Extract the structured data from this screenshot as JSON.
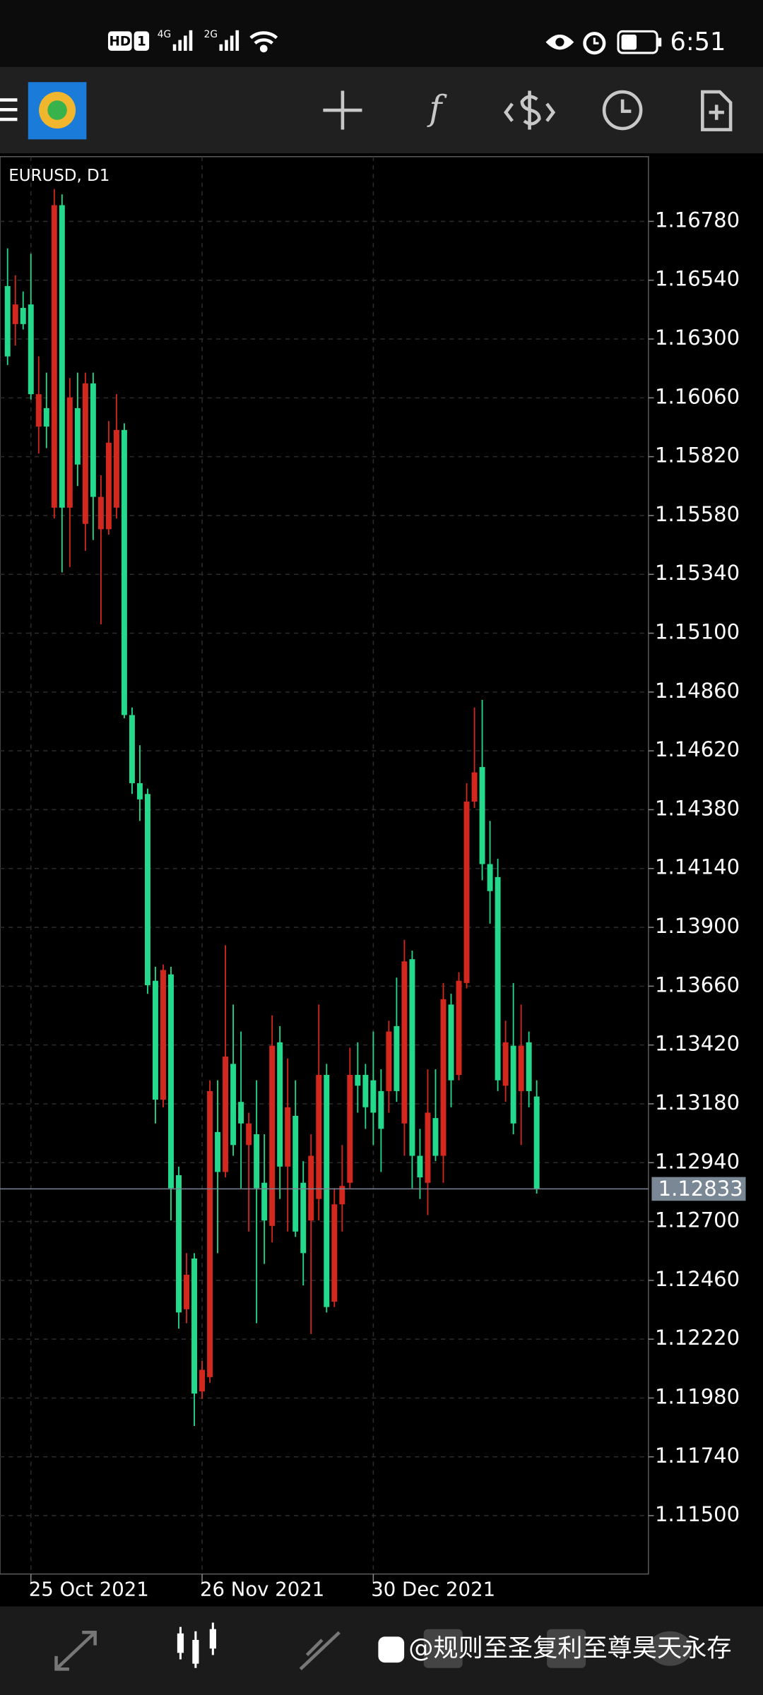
{
  "status_bar": {
    "network": [
      "HD",
      "1",
      "4G",
      "2G"
    ],
    "time": "6:51"
  },
  "chart_data": {
    "type": "candlestick",
    "title": "EURUSD, D1",
    "categories": [
      null,
      null,
      null,
      "25 Oct 2021",
      null,
      null,
      null,
      null,
      null,
      null,
      null,
      null,
      null,
      null,
      null,
      null,
      null,
      null,
      null,
      null,
      null,
      null,
      null,
      null,
      null,
      "26 Nov 2021",
      null,
      null,
      null,
      null,
      null,
      null,
      null,
      null,
      null,
      null,
      null,
      null,
      null,
      null,
      null,
      null,
      null,
      null,
      null,
      null,
      null,
      "30 Dec 2021",
      null,
      null,
      null,
      null,
      null,
      null,
      null,
      null,
      null,
      null,
      null,
      null,
      null,
      null,
      null,
      null,
      null,
      null,
      null,
      null,
      null
    ],
    "open": [
      1.16516,
      1.16361,
      1.16427,
      1.16441,
      1.15943,
      1.16018,
      1.15612,
      1.16846,
      1.15612,
      1.16018,
      1.15546,
      1.16119,
      1.15524,
      1.15524,
      1.15612,
      1.15929,
      1.14766,
      1.14488,
      1.14444,
      1.13682,
      1.13197,
      1.13708,
      1.12889,
      1.12342,
      1.12549,
      1.12007,
      1.12065,
      1.13065,
      1.12902,
      1.13343,
      1.13188,
      1.13012,
      1.13056,
      1.12858,
      1.12682,
      1.13431,
      1.12924,
      1.13131,
      1.12858,
      1.12704,
      1.12792,
      1.13298,
      1.12373,
      1.1277,
      1.12858,
      1.13298,
      1.13298,
      1.13276,
      1.13232,
      1.13232,
      1.13497,
      1.131,
      1.1377,
      1.12968,
      1.12858,
      1.13122,
      1.12968,
      1.13585,
      1.13298,
      1.13673,
      1.14413,
      1.14554,
      1.14158,
      1.14105,
      1.13254,
      1.13417,
      1.13232,
      1.13431,
      1.1321
    ],
    "high": [
      1.1667,
      1.1656,
      1.16494,
      1.16648,
      1.16229,
      1.16163,
      1.16912,
      1.1689,
      1.16141,
      1.16163,
      1.16163,
      1.16163,
      1.15744,
      1.15965,
      1.16075,
      1.15956,
      1.14797,
      1.14643,
      1.14466,
      1.13739,
      1.13748,
      1.13739,
      1.12924,
      1.12571,
      1.12571,
      1.12131,
      1.13276,
      1.13276,
      1.13827,
      1.13585,
      1.13475,
      1.13144,
      1.13276,
      1.13056,
      1.13541,
      1.13497,
      1.13365,
      1.13276,
      1.12946,
      1.13056,
      1.13585,
      1.13343,
      1.12836,
      1.13012,
      1.13409,
      1.13431,
      1.13343,
      1.13475,
      1.13321,
      1.13519,
      1.13695,
      1.13849,
      1.13805,
      1.13078,
      1.13321,
      1.13321,
      1.13673,
      1.13629,
      1.13717,
      1.14488,
      1.14797,
      1.14828,
      1.14334,
      1.1418,
      1.13519,
      1.13673,
      1.13585,
      1.13475,
      1.13276
    ],
    "low": [
      1.16194,
      1.16273,
      1.16339,
      1.16053,
      1.15833,
      1.15855,
      1.15568,
      1.15348,
      1.1537,
      1.157,
      1.15436,
      1.1548,
      1.15136,
      1.15502,
      1.15568,
      1.14753,
      1.14444,
      1.14334,
      1.13629,
      1.131,
      1.13166,
      1.12704,
      1.12263,
      1.12285,
      1.11866,
      1.11976,
      1.12042,
      1.12571,
      1.1288,
      1.12968,
      1.12836,
      1.12659,
      1.12285,
      1.12527,
      1.12615,
      1.12792,
      1.12659,
      1.12637,
      1.12439,
      1.12241,
      1.12704,
      1.12329,
      1.12351,
      1.12659,
      1.12836,
      1.13144,
      1.13078,
      1.13012,
      1.12902,
      1.13144,
      1.13188,
      1.12968,
      1.12836,
      1.12792,
      1.12726,
      1.12946,
      1.12858,
      1.13166,
      1.13276,
      1.13651,
      1.14387,
      1.14092,
      1.13915,
      1.13232,
      1.13188,
      1.13056,
      1.13012,
      1.13166,
      1.12814
    ],
    "close": [
      1.16229,
      1.16441,
      1.16361,
      1.16075,
      1.16075,
      1.15943,
      1.16846,
      1.15612,
      1.16062,
      1.15788,
      1.16119,
      1.15656,
      1.15656,
      1.15877,
      1.15929,
      1.14766,
      1.14488,
      1.14422,
      1.13664,
      1.13197,
      1.13726,
      1.12836,
      1.12329,
      1.12483,
      1.11998,
      1.12095,
      1.13232,
      1.12902,
      1.13373,
      1.13012,
      1.131,
      1.131,
      1.12836,
      1.12704,
      1.13417,
      1.12924,
      1.13166,
      1.12659,
      1.12571,
      1.12968,
      1.13298,
      1.12351,
      1.1277,
      1.12845,
      1.13298,
      1.13254,
      1.13166,
      1.13144,
      1.13078,
      1.13475,
      1.13232,
      1.13761,
      1.12968,
      1.1288,
      1.13144,
      1.12968,
      1.13607,
      1.13276,
      1.13682,
      1.14413,
      1.14532,
      1.14158,
      1.14048,
      1.13276,
      1.13431,
      1.131,
      1.13417,
      1.13232,
      1.12833
    ],
    "up_color": "#d2281d",
    "down_color": "#24d88c",
    "ylim": [
      1.11262,
      1.17044
    ],
    "yticks": [
      {
        "value": 1.1678,
        "label": "1.16780"
      },
      {
        "value": 1.1654,
        "label": "1.16540"
      },
      {
        "value": 1.163,
        "label": "1.16300"
      },
      {
        "value": 1.1606,
        "label": "1.16060"
      },
      {
        "value": 1.1582,
        "label": "1.15820"
      },
      {
        "value": 1.1558,
        "label": "1.15580"
      },
      {
        "value": 1.1534,
        "label": "1.15340"
      },
      {
        "value": 1.151,
        "label": "1.15100"
      },
      {
        "value": 1.1486,
        "label": "1.14860"
      },
      {
        "value": 1.1462,
        "label": "1.14620"
      },
      {
        "value": 1.1438,
        "label": "1.14380"
      },
      {
        "value": 1.1414,
        "label": "1.14140"
      },
      {
        "value": 1.139,
        "label": "1.13900"
      },
      {
        "value": 1.1366,
        "label": "1.13660"
      },
      {
        "value": 1.1342,
        "label": "1.13420"
      },
      {
        "value": 1.1318,
        "label": "1.13180"
      },
      {
        "value": 1.1294,
        "label": "1.12940"
      },
      {
        "value": 1.127,
        "label": "1.12700"
      },
      {
        "value": 1.1246,
        "label": "1.12460"
      },
      {
        "value": 1.1222,
        "label": "1.12220"
      },
      {
        "value": 1.1198,
        "label": "1.11980"
      },
      {
        "value": 1.1174,
        "label": "1.11740"
      },
      {
        "value": 1.115,
        "label": "1.11500"
      }
    ],
    "grid": true,
    "current_price": 1.12833,
    "current_price_color": "#7a8795"
  },
  "watermark": "@规则至圣复利至尊昊天永存"
}
